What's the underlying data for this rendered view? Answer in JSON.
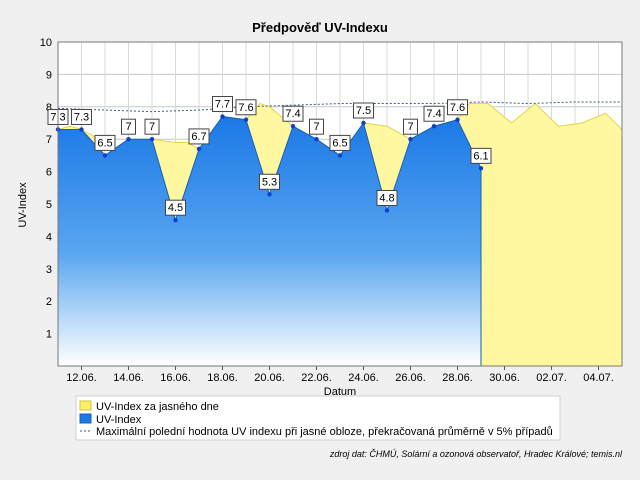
{
  "chart_data": {
    "type": "area",
    "title": "Předpověď UV-Indexu",
    "xlabel": "Datum",
    "ylabel": "UV-Index",
    "ylim": [
      0,
      10
    ],
    "yticks": [
      "1",
      "2",
      "3",
      "4",
      "5",
      "6",
      "7",
      "8",
      "9",
      "10"
    ],
    "x_tick_labels": [
      "12.06.",
      "14.06.",
      "16.06.",
      "18.06.",
      "20.06.",
      "22.06.",
      "24.06.",
      "26.06.",
      "28.06.",
      "30.06.",
      "02.07.",
      "04.07."
    ],
    "x_day_index_start": 11,
    "x_day_index_end": 35,
    "grid": true,
    "legend_position": "bottom",
    "series": [
      {
        "name": "UV-Index za jasného dne",
        "color": "#fff8a0",
        "edge_color": "#e6d34a",
        "points": [
          [
            11.0,
            7.3
          ],
          [
            11.5,
            7.4
          ],
          [
            12.0,
            7.3
          ],
          [
            12.5,
            7.1
          ],
          [
            13.0,
            6.5
          ],
          [
            14.0,
            7.0
          ],
          [
            15.0,
            7.0
          ],
          [
            16.0,
            6.9
          ],
          [
            16.5,
            6.9
          ],
          [
            17.0,
            6.7
          ],
          [
            18.0,
            7.7
          ],
          [
            19.0,
            7.6
          ],
          [
            19.6,
            8.1
          ],
          [
            20.0,
            8.0
          ],
          [
            21.0,
            7.4
          ],
          [
            22.0,
            7.0
          ],
          [
            23.0,
            6.5
          ],
          [
            24.0,
            7.5
          ],
          [
            25.0,
            7.4
          ],
          [
            26.0,
            7.0
          ],
          [
            27.0,
            7.4
          ],
          [
            28.0,
            7.6
          ],
          [
            28.5,
            8.1
          ],
          [
            29.3,
            8.1
          ],
          [
            30.3,
            7.5
          ],
          [
            31.3,
            8.1
          ],
          [
            32.3,
            7.4
          ],
          [
            33.3,
            7.5
          ],
          [
            34.3,
            7.8
          ],
          [
            35.0,
            7.3
          ]
        ]
      },
      {
        "name": "UV-Index",
        "color": "#1a78e6",
        "points": [
          [
            11.0,
            7.3
          ],
          [
            12.0,
            7.3
          ],
          [
            13.0,
            6.5
          ],
          [
            14.0,
            7.0
          ],
          [
            15.0,
            7.0
          ],
          [
            16.0,
            4.5
          ],
          [
            17.0,
            6.7
          ],
          [
            18.0,
            7.7
          ],
          [
            19.0,
            7.6
          ],
          [
            20.0,
            5.3
          ],
          [
            21.0,
            7.4
          ],
          [
            22.0,
            7.0
          ],
          [
            23.0,
            6.5
          ],
          [
            24.0,
            7.5
          ],
          [
            25.0,
            4.8
          ],
          [
            26.0,
            7.0
          ],
          [
            27.0,
            7.4
          ],
          [
            28.0,
            7.6
          ],
          [
            29.0,
            6.1
          ]
        ],
        "labels": [
          "7.3",
          "7.3",
          "6.5",
          "7",
          "7",
          "4.5",
          "6.7",
          "7.7",
          "7.6",
          "5.3",
          "7.4",
          "7",
          "6.5",
          "7.5",
          "4.8",
          "7",
          "7.4",
          "7.6",
          "6.1"
        ]
      },
      {
        "name": "Maximální polední hodnota UV indexu při jasné obloze, překračovaná průměrně v 5% případů",
        "color": "#3a5a8c",
        "style": "dashed",
        "points": [
          [
            11.0,
            7.95
          ],
          [
            13.0,
            7.9
          ],
          [
            15.0,
            7.85
          ],
          [
            17.0,
            7.9
          ],
          [
            19.0,
            8.0
          ],
          [
            21.0,
            8.05
          ],
          [
            23.0,
            8.1
          ],
          [
            25.0,
            8.1
          ],
          [
            27.0,
            8.1
          ],
          [
            29.0,
            8.15
          ],
          [
            31.0,
            8.1
          ],
          [
            33.0,
            8.15
          ],
          [
            35.0,
            8.15
          ]
        ]
      }
    ],
    "source_note": "zdroj dat: ČHMÚ, Solární a ozonová observatoř, Hradec Králové; temis.nl"
  }
}
